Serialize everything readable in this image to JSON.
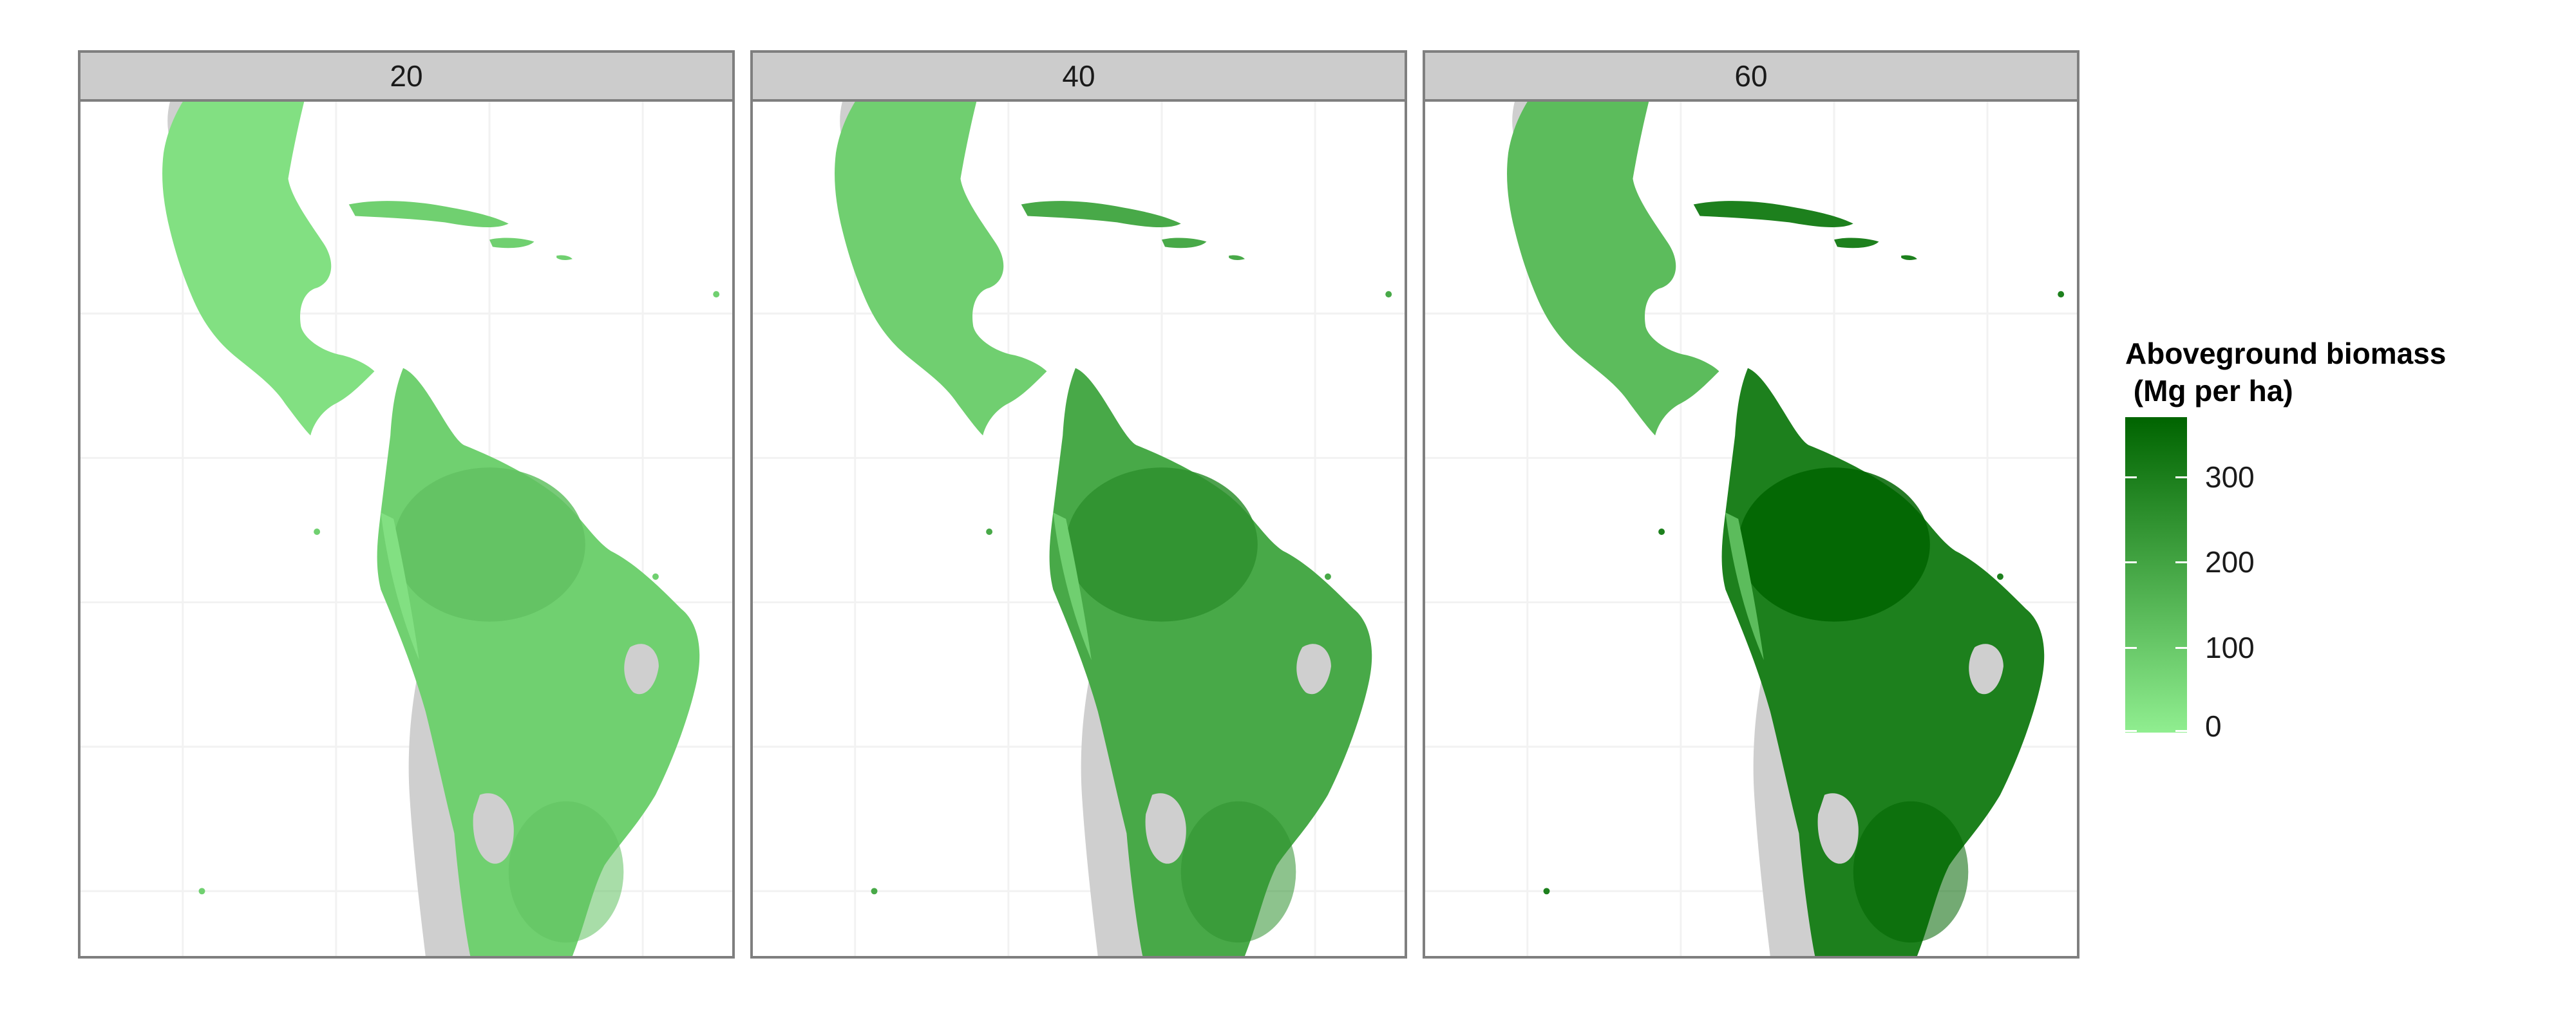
{
  "panels": [
    {
      "label": "20",
      "intensity": 0.22
    },
    {
      "label": "40",
      "intensity": 0.5
    },
    {
      "label": "60",
      "intensity": 0.8
    }
  ],
  "legend": {
    "title": "Aboveground biomass\n (Mg per ha)",
    "ticks": [
      "0",
      "100",
      "200",
      "300"
    ],
    "max_value": 370,
    "color_low": "#90EE90",
    "color_high": "#006400"
  },
  "colors": {
    "land_no_data": "#cfcfcf",
    "strip_bg": "#cccccc",
    "border": "#7f7f7f",
    "grid": "#f2f2f2"
  }
}
